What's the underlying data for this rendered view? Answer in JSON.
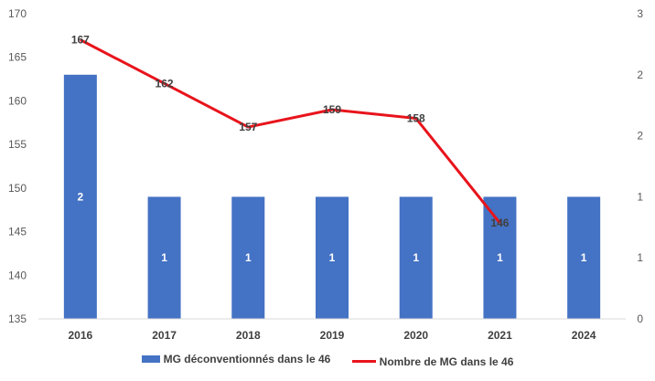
{
  "chart_data": {
    "type": "bar",
    "categories": [
      "2016",
      "2017",
      "2018",
      "2019",
      "2020",
      "2021",
      "2024"
    ],
    "series": [
      {
        "name": "MG déconventionnés dans le 46",
        "chart_type": "bar",
        "axis": "secondary",
        "values": [
          2,
          1,
          1,
          1,
          1,
          1,
          1
        ],
        "data_labels": [
          "2",
          "1",
          "1",
          "1",
          "1",
          "1",
          "1"
        ],
        "color": "#4472C4"
      },
      {
        "name": "Nombre de MG dans le 46",
        "chart_type": "line",
        "axis": "primary",
        "values": [
          167,
          162,
          157,
          159,
          158,
          146,
          null
        ],
        "data_labels": [
          "167",
          "162",
          "157",
          "159",
          "158",
          "146"
        ],
        "color": "#E8141C"
      }
    ],
    "primary_axis": {
      "ylim": [
        135,
        170
      ],
      "tick_values": [
        135,
        140,
        145,
        150,
        155,
        160,
        165,
        170
      ],
      "tick_labels": [
        "135",
        "140",
        "145",
        "150",
        "155",
        "160",
        "165",
        "170"
      ]
    },
    "secondary_axis": {
      "ylim": [
        0,
        2.5
      ],
      "tick_values": [
        0,
        0.5,
        1,
        1.5,
        2,
        2.5
      ],
      "tick_labels": [
        "0",
        "1",
        "1",
        "2",
        "2",
        "3"
      ]
    },
    "grid": false,
    "legend_position": "bottom"
  }
}
